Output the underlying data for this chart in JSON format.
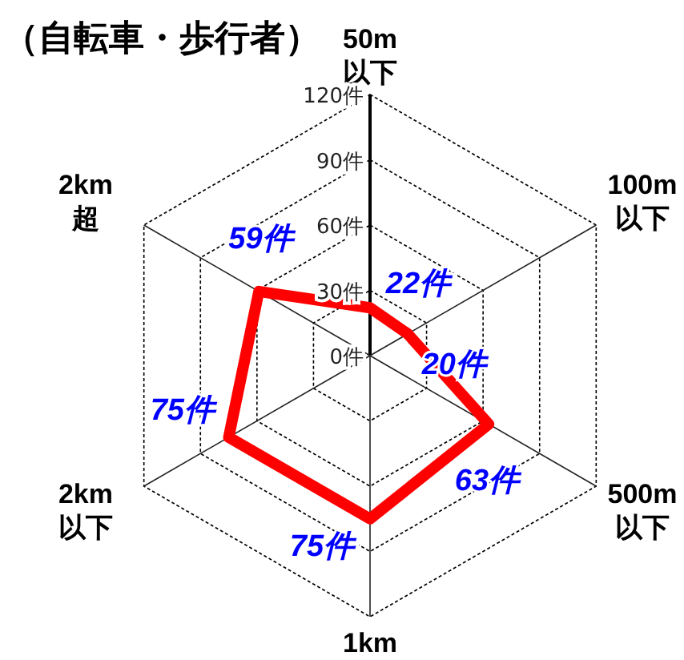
{
  "chart_data": {
    "type": "radar",
    "title": "（自転車・歩行者）",
    "categories": [
      "50m\n以下",
      "100m\n以下",
      "500m\n以下",
      "1km",
      "2km\n以下",
      "2km\n超"
    ],
    "series": [
      {
        "color": "#ff0000",
        "values": [
          22,
          20,
          63,
          75,
          75,
          59
        ],
        "value_labels": [
          "22件",
          "20件",
          "63件",
          "75件",
          "75件",
          "59件"
        ]
      }
    ],
    "ylim": [
      0,
      120
    ],
    "yticks": [
      {
        "value": 0,
        "label": "0件"
      },
      {
        "value": 30,
        "label": "30件"
      },
      {
        "value": 60,
        "label": "60件"
      },
      {
        "value": 90,
        "label": "90件"
      },
      {
        "value": 120,
        "label": "120件"
      }
    ],
    "grid": true
  }
}
